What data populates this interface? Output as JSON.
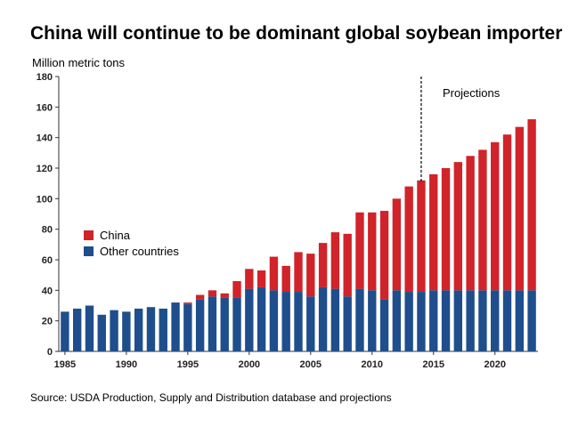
{
  "chart_data": {
    "type": "bar",
    "stacked": true,
    "title": "China will continue to be dominant global soybean importer",
    "ylabel": "Million metric tons",
    "xlabel": "",
    "source": "Source: USDA Production, Supply and Distribution database and projections",
    "ylim": [
      0,
      180
    ],
    "yticks": [
      0,
      20,
      40,
      60,
      80,
      100,
      120,
      140,
      160,
      180
    ],
    "xticks": [
      1985,
      1990,
      1995,
      2000,
      2005,
      2010,
      2015,
      2020
    ],
    "x": [
      1985,
      1986,
      1987,
      1988,
      1989,
      1990,
      1991,
      1992,
      1993,
      1994,
      1995,
      1996,
      1997,
      1998,
      1999,
      2000,
      2001,
      2002,
      2003,
      2004,
      2005,
      2006,
      2007,
      2008,
      2009,
      2010,
      2011,
      2012,
      2013,
      2014,
      2015,
      2016,
      2017,
      2018,
      2019,
      2020,
      2021,
      2022,
      2023
    ],
    "series": [
      {
        "name": "Other countries",
        "color": "#1f4e8c",
        "values": [
          26,
          28,
          30,
          24,
          27,
          26,
          28,
          29,
          28,
          32,
          31,
          34,
          36,
          35,
          35,
          41,
          42,
          40,
          39,
          39,
          36,
          42,
          41,
          36,
          41,
          40,
          34,
          40,
          39,
          39,
          40,
          40,
          40,
          40,
          40,
          40,
          40,
          40,
          40
        ]
      },
      {
        "name": "China",
        "color": "#d0232a",
        "values": [
          0,
          0,
          0,
          0,
          0,
          0,
          0,
          0,
          0,
          0,
          1,
          3,
          4,
          3,
          11,
          13,
          11,
          22,
          17,
          26,
          28,
          29,
          37,
          41,
          50,
          51,
          58,
          60,
          69,
          73,
          76,
          80,
          84,
          88,
          92,
          97,
          102,
          107,
          112
        ]
      }
    ],
    "annotation": {
      "label": "Projections",
      "x": 2014
    },
    "legend": "left",
    "grid": false
  }
}
